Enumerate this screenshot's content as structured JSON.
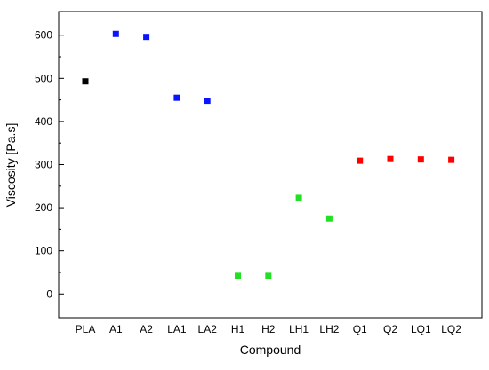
{
  "chart_data": {
    "type": "scatter",
    "title": "",
    "xlabel": "Compound",
    "ylabel": "Viscosity [Pa.s]",
    "categories": [
      "PLA",
      "A1",
      "A2",
      "LA1",
      "LA2",
      "H1",
      "H2",
      "LH1",
      "LH2",
      "Q1",
      "Q2",
      "LQ1",
      "LQ2"
    ],
    "values": [
      493,
      603,
      596,
      455,
      448,
      42,
      42,
      223,
      175,
      309,
      313,
      312,
      311
    ],
    "point_colors": [
      "#000000",
      "#0a14ff",
      "#0a14ff",
      "#0a14ff",
      "#0a14ff",
      "#22e022",
      "#22e022",
      "#22e022",
      "#22e022",
      "#ff0000",
      "#ff0000",
      "#ff0000",
      "#ff0000"
    ],
    "ylim": [
      -55,
      655
    ],
    "yticks": [
      0,
      100,
      200,
      300,
      400,
      500,
      600
    ],
    "grid": false,
    "legend": "none",
    "marker": "square"
  }
}
